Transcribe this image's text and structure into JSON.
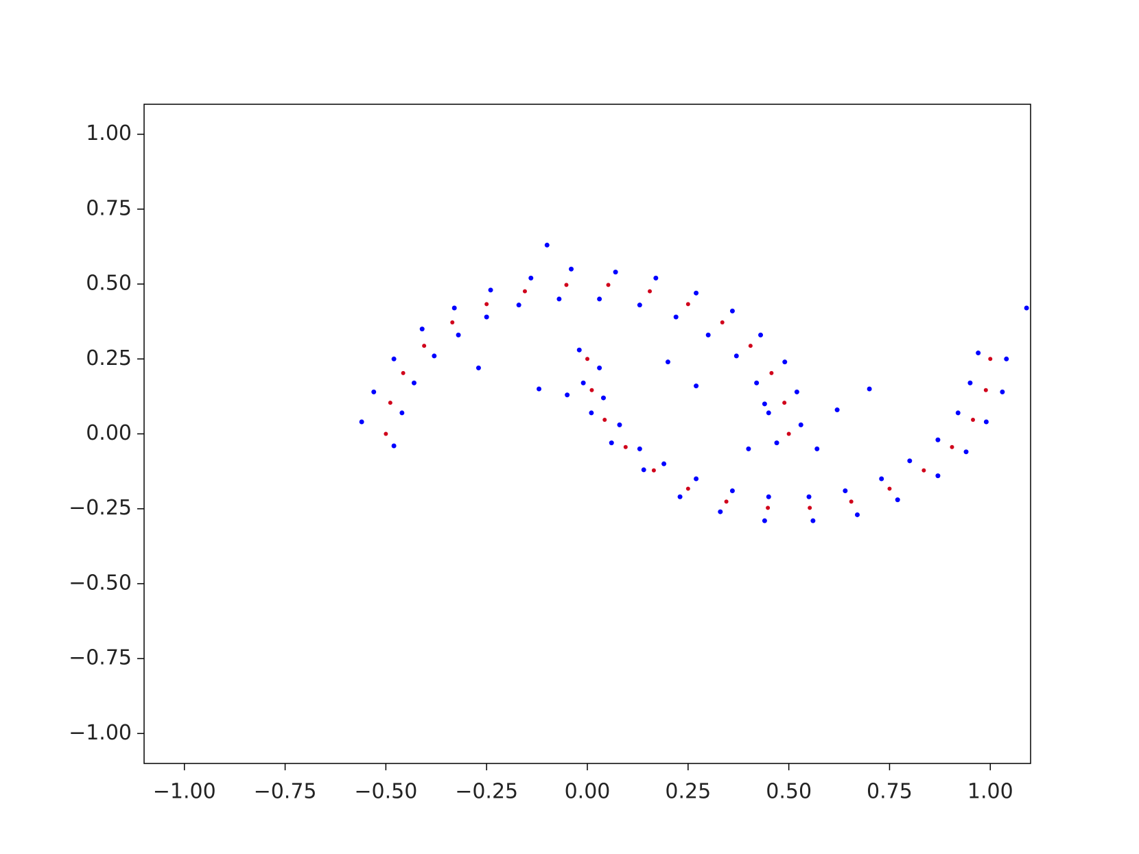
{
  "chart_data": {
    "type": "scatter",
    "xlim": [
      -1.1,
      1.1
    ],
    "ylim": [
      -1.1,
      1.1
    ],
    "xticks": [
      {
        "value": -1,
        "label": "−1.00"
      },
      {
        "value": -0.75,
        "label": "−0.75"
      },
      {
        "value": -0.5,
        "label": "−0.50"
      },
      {
        "value": -0.25,
        "label": "−0.25"
      },
      {
        "value": 0,
        "label": "0.00"
      },
      {
        "value": 0.25,
        "label": "0.25"
      },
      {
        "value": 0.5,
        "label": "0.50"
      },
      {
        "value": 0.75,
        "label": "0.75"
      },
      {
        "value": 1,
        "label": "1.00"
      }
    ],
    "yticks": [
      {
        "value": -1,
        "label": "−1.00"
      },
      {
        "value": -0.75,
        "label": "−0.75"
      },
      {
        "value": -0.5,
        "label": "−0.50"
      },
      {
        "value": -0.25,
        "label": "−0.25"
      },
      {
        "value": 0,
        "label": "0.00"
      },
      {
        "value": 0.25,
        "label": "0.25"
      },
      {
        "value": 0.5,
        "label": "0.50"
      },
      {
        "value": 0.75,
        "label": "0.75"
      },
      {
        "value": 1,
        "label": "1.00"
      }
    ],
    "series": [
      {
        "color": "#0000ff",
        "x": [
          0.53,
          0.52,
          0.49,
          0.43,
          0.36,
          0.27,
          0.17,
          0.07,
          -0.04,
          -0.14,
          -0.24,
          -0.33,
          -0.41,
          -0.48,
          -0.53,
          -0.56,
          0.47,
          0.45,
          0.42,
          0.37,
          0.3,
          0.22,
          0.13,
          0.03,
          -0.07,
          -0.17,
          -0.25,
          -0.32,
          -0.38,
          -0.43,
          -0.46,
          -0.48,
          -0.02,
          -0.01,
          0.01,
          0.06,
          0.14,
          0.23,
          0.33,
          0.44,
          0.56,
          0.67,
          0.77,
          0.87,
          0.94,
          0.99,
          1.03,
          1.04,
          0.03,
          0.04,
          0.08,
          0.13,
          0.19,
          0.27,
          0.36,
          0.45,
          0.55,
          0.64,
          0.73,
          0.8,
          0.87,
          0.92,
          0.95,
          0.97,
          -0.1,
          -0.27,
          -0.12,
          -0.05,
          0.2,
          0.27,
          0.4,
          0.62,
          0.7,
          0.44,
          0.57,
          1.09
        ],
        "values": [
          0.03,
          0.14,
          0.24,
          0.33,
          0.41,
          0.47,
          0.52,
          0.54,
          0.55,
          0.52,
          0.48,
          0.42,
          0.35,
          0.25,
          0.14,
          0.04,
          -0.03,
          0.07,
          0.17,
          0.26,
          0.33,
          0.39,
          0.43,
          0.45,
          0.45,
          0.43,
          0.39,
          0.33,
          0.26,
          0.17,
          0.07,
          -0.04,
          0.28,
          0.17,
          0.07,
          -0.03,
          -0.12,
          -0.21,
          -0.26,
          -0.29,
          -0.29,
          -0.27,
          -0.22,
          -0.14,
          -0.06,
          0.04,
          0.14,
          0.25,
          0.22,
          0.12,
          0.03,
          -0.05,
          -0.1,
          -0.15,
          -0.19,
          -0.21,
          -0.21,
          -0.19,
          -0.15,
          -0.09,
          -0.02,
          0.07,
          0.17,
          0.27,
          0.63,
          0.22,
          0.15,
          0.13,
          0.24,
          0.16,
          -0.05,
          0.08,
          0.15,
          0.1,
          -0.05,
          0.42
        ]
      },
      {
        "color": "#d0021b",
        "x": [
          0.5,
          0.489,
          0.457,
          0.405,
          0.335,
          0.25,
          0.155,
          0.052,
          -0.052,
          -0.155,
          -0.25,
          -0.335,
          -0.405,
          -0.457,
          -0.489,
          -0.5,
          0,
          0.011,
          0.043,
          0.095,
          0.165,
          0.25,
          0.345,
          0.448,
          0.552,
          0.655,
          0.75,
          0.835,
          0.905,
          0.957,
          0.989,
          1
        ],
        "values": [
          0,
          0.104,
          0.203,
          0.294,
          0.372,
          0.433,
          0.476,
          0.497,
          0.497,
          0.476,
          0.433,
          0.372,
          0.294,
          0.203,
          0.104,
          0,
          0.25,
          0.146,
          0.047,
          -0.044,
          -0.122,
          -0.183,
          -0.226,
          -0.247,
          -0.247,
          -0.226,
          -0.183,
          -0.122,
          -0.044,
          0.047,
          0.146,
          0.25
        ]
      }
    ]
  }
}
